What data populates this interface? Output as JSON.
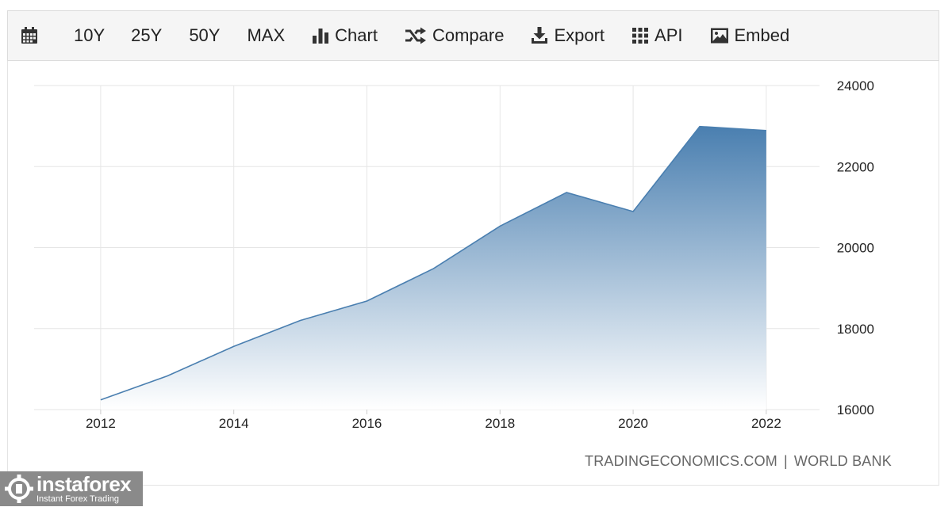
{
  "toolbar": {
    "items": [
      {
        "id": "calendar",
        "label": "",
        "icon": "calendar-icon"
      },
      {
        "id": "10y",
        "label": "10Y"
      },
      {
        "id": "25y",
        "label": "25Y"
      },
      {
        "id": "50y",
        "label": "50Y"
      },
      {
        "id": "max",
        "label": "MAX"
      },
      {
        "id": "chart",
        "label": "Chart",
        "icon": "bar-chart-icon"
      },
      {
        "id": "compare",
        "label": "Compare",
        "icon": "shuffle-icon"
      },
      {
        "id": "export",
        "label": "Export",
        "icon": "download-icon"
      },
      {
        "id": "api",
        "label": "API",
        "icon": "grid-icon"
      },
      {
        "id": "embed",
        "label": "Embed",
        "icon": "image-icon"
      }
    ]
  },
  "chart_data": {
    "type": "area",
    "title": "",
    "xlabel": "",
    "ylabel": "",
    "x": [
      2012,
      2013,
      2014,
      2015,
      2016,
      2017,
      2018,
      2019,
      2020,
      2021,
      2022
    ],
    "series": [
      {
        "values": [
          16240,
          16830,
          17560,
          18200,
          18680,
          19480,
          20530,
          21360,
          20890,
          22990,
          22890
        ]
      }
    ],
    "xticks": [
      "2012",
      "2014",
      "2016",
      "2018",
      "2020",
      "2022"
    ],
    "yticks": [
      "16000",
      "18000",
      "20000",
      "22000",
      "24000"
    ],
    "ylim": [
      16000,
      24000
    ],
    "xlim": [
      2011.0,
      2022.8
    ],
    "y_axis_side": "right",
    "grid": true,
    "legend": "none",
    "line_color": "#4a7fb0",
    "fill_top_color": "#4a7fb0",
    "fill_bottom_color": "#ffffff"
  },
  "source": {
    "left": "TRADINGECONOMICS.COM",
    "separator": "|",
    "right": "WORLD BANK"
  },
  "logo": {
    "brand": "instaforex",
    "tagline": "Instant Forex Trading"
  }
}
